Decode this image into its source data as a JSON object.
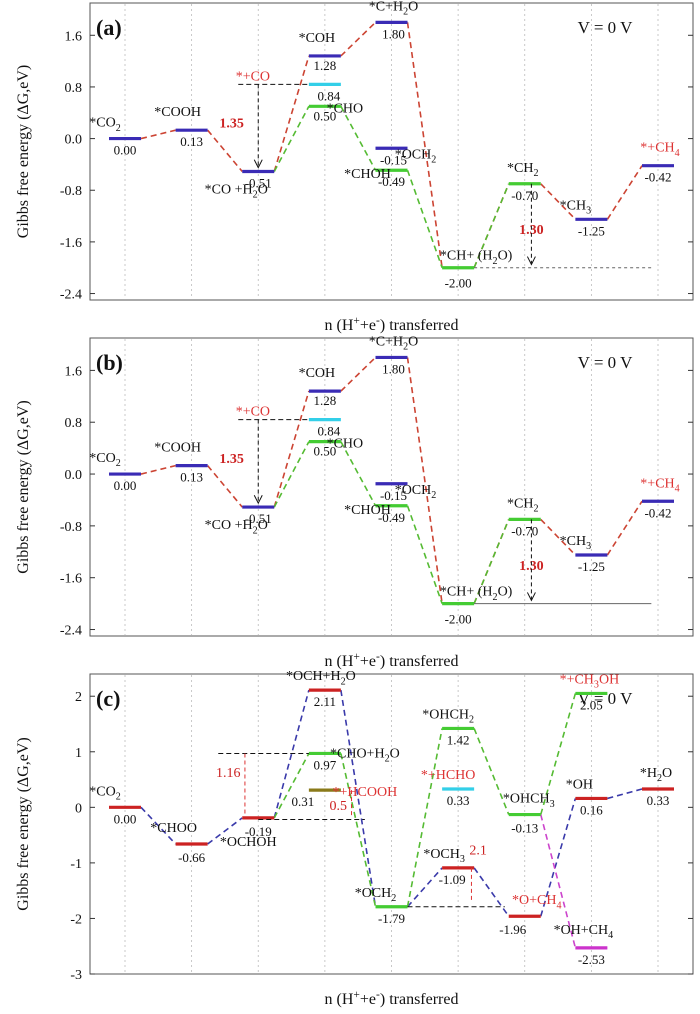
{
  "chart_data": [
    {
      "type": "line",
      "panel_label": "(a)",
      "voltage": "V = 0 V",
      "ylabel": "Gibbs free energy (ΔG,eV)",
      "xlabel": "n (H⁺+e⁻) transferred",
      "ylim": [
        -2.5,
        2.1
      ],
      "yticks": [
        "1.6",
        "0.8",
        "0.0",
        "-0.8",
        "-1.6",
        "-2.4"
      ],
      "yticks_values": [
        1.6,
        0.8,
        0.0,
        -0.8,
        -1.6,
        -2.4
      ],
      "xlim": [
        -0.3,
        8.0
      ],
      "grid_x": [
        0,
        1,
        2,
        3,
        4,
        5,
        6,
        7,
        8
      ],
      "states": [
        {
          "x": 0,
          "y": 0.0,
          "color": "#3a2bb5",
          "label": "*CO₂",
          "value": "0.00"
        },
        {
          "x": 1,
          "y": 0.13,
          "color": "#3a2bb5",
          "label": "*COOH",
          "value": "0.13"
        },
        {
          "x": 2,
          "y": -0.51,
          "color": "#3a2bb5",
          "label": "*CO +H₂O",
          "value": "-0.51"
        },
        {
          "x": 3,
          "y": 1.28,
          "color": "#3a2bb5",
          "label": "*COH",
          "value": "1.28"
        },
        {
          "x": 3,
          "y": 0.84,
          "color": "#33cfe8",
          "label": "*+CO",
          "value": "0.84"
        },
        {
          "x": 3,
          "y": 0.5,
          "color": "#44cc33",
          "label": "*CHO",
          "value": "0.50"
        },
        {
          "x": 4,
          "y": 1.8,
          "color": "#3a2bb5",
          "label": "*C+H₂O",
          "value": "1.80"
        },
        {
          "x": 4,
          "y": -0.15,
          "color": "#3a2bb5",
          "label": "*OCH₂",
          "value": "-0.15"
        },
        {
          "x": 4,
          "y": -0.49,
          "color": "#44cc33",
          "label": "*CHOH",
          "value": "-0.49"
        },
        {
          "x": 5,
          "y": -2.0,
          "color": "#44cc33",
          "label": "*CH+ (H₂O)",
          "value": "-2.00"
        },
        {
          "x": 6,
          "y": -0.7,
          "color": "#44cc33",
          "label": "*CH₂",
          "value": "-0.70"
        },
        {
          "x": 7,
          "y": -1.25,
          "color": "#3a2bb5",
          "label": "*CH₃",
          "value": "-1.25"
        },
        {
          "x": 8,
          "y": -0.42,
          "color": "#3a2bb5",
          "label": "*+CH₄",
          "value": "-0.42"
        }
      ],
      "series": [
        {
          "name": "red pathway",
          "color": "#cc4433",
          "points": [
            [
              0,
              0.0
            ],
            [
              1,
              0.13
            ],
            [
              2,
              -0.51
            ],
            [
              3,
              1.28
            ],
            [
              4,
              1.8
            ],
            [
              5,
              -2.0
            ],
            [
              6,
              -0.7
            ],
            [
              7,
              -1.25
            ],
            [
              8,
              -0.42
            ]
          ]
        },
        {
          "name": "green pathway",
          "color": "#55bb33",
          "points": [
            [
              2,
              -0.51
            ],
            [
              3,
              0.5
            ],
            [
              4,
              -0.49
            ],
            [
              5,
              -2.0
            ],
            [
              6,
              -0.7
            ]
          ]
        }
      ],
      "annotations": [
        {
          "text": "1.35",
          "color": "#cc2222",
          "x": 1.6,
          "y": 0.17
        },
        {
          "text": "1.30",
          "color": "#cc2222",
          "x": 6.1,
          "y": -1.48
        }
      ]
    },
    {
      "type": "line",
      "panel_label": "(b)",
      "voltage": "V = 0 V",
      "ylabel": "Gibbs free energy (ΔG,eV)",
      "xlabel": "n (H⁺+e⁻) transferred",
      "ylim": [
        -2.5,
        2.1
      ],
      "yticks": [
        "1.6",
        "0.8",
        "0.0",
        "-0.8",
        "-1.6",
        "-2.4"
      ],
      "yticks_values": [
        1.6,
        0.8,
        0.0,
        -0.8,
        -1.6,
        -2.4
      ],
      "xlim": [
        -0.3,
        8.0
      ],
      "grid_x": [
        0,
        1,
        2,
        3,
        4,
        5,
        6,
        7,
        8
      ],
      "states": [
        {
          "x": 0,
          "y": 0.0,
          "color": "#3a2bb5",
          "label": "*CO₂",
          "value": "0.00"
        },
        {
          "x": 1,
          "y": 0.13,
          "color": "#3a2bb5",
          "label": "*COOH",
          "value": "0.13"
        },
        {
          "x": 2,
          "y": -0.51,
          "color": "#3a2bb5",
          "label": "*CO +H₂O",
          "value": "-0.51"
        },
        {
          "x": 3,
          "y": 1.28,
          "color": "#3a2bb5",
          "label": "*COH",
          "value": "1.28"
        },
        {
          "x": 3,
          "y": 0.84,
          "color": "#33cfe8",
          "label": "*+CO",
          "value": "0.84"
        },
        {
          "x": 3,
          "y": 0.5,
          "color": "#44cc33",
          "label": "*CHO",
          "value": "0.50"
        },
        {
          "x": 4,
          "y": 1.8,
          "color": "#3a2bb5",
          "label": "*C+H₂O",
          "value": "1.80"
        },
        {
          "x": 4,
          "y": -0.15,
          "color": "#3a2bb5",
          "label": "*OCH₂",
          "value": "-0.15"
        },
        {
          "x": 4,
          "y": -0.49,
          "color": "#44cc33",
          "label": "*CHOH",
          "value": "-0.49"
        },
        {
          "x": 5,
          "y": -2.0,
          "color": "#44cc33",
          "label": "*CH+ (H₂O)",
          "value": "-2.00"
        },
        {
          "x": 6,
          "y": -0.7,
          "color": "#44cc33",
          "label": "*CH₂",
          "value": "-0.70"
        },
        {
          "x": 7,
          "y": -1.25,
          "color": "#3a2bb5",
          "label": "*CH₃",
          "value": "-1.25"
        },
        {
          "x": 8,
          "y": -0.42,
          "color": "#3a2bb5",
          "label": "*+CH₄",
          "value": "-0.42"
        }
      ],
      "series": [
        {
          "name": "red pathway",
          "color": "#cc4433",
          "points": [
            [
              0,
              0.0
            ],
            [
              1,
              0.13
            ],
            [
              2,
              -0.51
            ],
            [
              3,
              1.28
            ],
            [
              4,
              1.8
            ],
            [
              5,
              -2.0
            ],
            [
              6,
              -0.7
            ],
            [
              7,
              -1.25
            ],
            [
              8,
              -0.42
            ]
          ]
        },
        {
          "name": "green pathway",
          "color": "#55bb33",
          "points": [
            [
              2,
              -0.51
            ],
            [
              3,
              0.5
            ],
            [
              4,
              -0.49
            ],
            [
              5,
              -2.0
            ],
            [
              6,
              -0.7
            ]
          ]
        }
      ],
      "annotations": [
        {
          "text": "1.35",
          "color": "#cc2222",
          "x": 1.6,
          "y": 0.17
        },
        {
          "text": "1.30",
          "color": "#cc2222",
          "x": 6.1,
          "y": -1.48
        }
      ]
    },
    {
      "type": "line",
      "panel_label": "(c)",
      "voltage": "V = 0 V",
      "ylabel": "Gibbs free energy (ΔG,eV)",
      "xlabel": "n (H⁺+e⁻) transferred",
      "ylim": [
        -3.0,
        2.4
      ],
      "yticks": [
        "2",
        "1",
        "0",
        "-1",
        "-2",
        "-3"
      ],
      "yticks_values": [
        2,
        1,
        0,
        -1,
        -2,
        -3
      ],
      "xlim": [
        -0.3,
        8.0
      ],
      "grid_x": [
        0,
        1,
        2,
        3,
        4,
        5,
        6,
        7,
        8
      ],
      "states": [
        {
          "x": 0,
          "y": 0.0,
          "color": "#cc2222",
          "label": "*CO₂",
          "value": "0.00"
        },
        {
          "x": 1,
          "y": -0.66,
          "color": "#cc2222",
          "label": "*CHOO",
          "value": "-0.66"
        },
        {
          "x": 2,
          "y": -0.19,
          "color": "#cc2222",
          "label": "*OCHOH",
          "value": "-0.19"
        },
        {
          "x": 3,
          "y": 2.11,
          "color": "#cc2222",
          "label": "*OCH+H₂O",
          "value": "2.11"
        },
        {
          "x": 3,
          "y": 0.97,
          "color": "#44cc33",
          "label": "*CHO+H₂O",
          "value": "0.97"
        },
        {
          "x": 3,
          "y": 0.31,
          "color": "#8a7a1a",
          "label": "*+HCOOH",
          "value": "0.31"
        },
        {
          "x": 4,
          "y": -1.79,
          "color": "#44cc33",
          "label": "*OCH₂",
          "value": "-1.79"
        },
        {
          "x": 5,
          "y": 1.42,
          "color": "#44cc33",
          "label": "*OHCH₂",
          "value": "1.42"
        },
        {
          "x": 5,
          "y": 0.33,
          "color": "#33cfe8",
          "label": "*+HCHO",
          "value": "0.33"
        },
        {
          "x": 5,
          "y": -1.09,
          "color": "#cc2222",
          "label": "*OCH₃",
          "value": "-1.09"
        },
        {
          "x": 6,
          "y": -0.13,
          "color": "#44cc33",
          "label": "*OHCH₃",
          "value": "-0.13"
        },
        {
          "x": 6,
          "y": -1.96,
          "color": "#cc2222",
          "label": "*O+CH₄",
          "value": "-1.96"
        },
        {
          "x": 7,
          "y": 2.05,
          "color": "#44cc33",
          "label": "*+CH₃OH",
          "value": "2.05"
        },
        {
          "x": 7,
          "y": 0.16,
          "color": "#cc2222",
          "label": "*OH",
          "value": "0.16"
        },
        {
          "x": 7,
          "y": -2.53,
          "color": "#cc33cc",
          "label": "*OH+CH₄",
          "value": "-2.53"
        },
        {
          "x": 8,
          "y": 0.33,
          "color": "#cc2222",
          "label": "*H₂O",
          "value": "0.33"
        }
      ],
      "series": [
        {
          "name": "blue pathway",
          "color": "#3a3aaa",
          "points": [
            [
              0,
              0.0
            ],
            [
              1,
              -0.66
            ],
            [
              2,
              -0.19
            ],
            [
              3,
              2.11
            ],
            [
              4,
              -1.79
            ],
            [
              5,
              -1.09
            ],
            [
              6,
              -1.96
            ],
            [
              7,
              0.16
            ],
            [
              8,
              0.33
            ]
          ]
        },
        {
          "name": "green pathway",
          "color": "#55bb33",
          "points": [
            [
              2,
              -0.19
            ],
            [
              3,
              0.97
            ],
            [
              4,
              -1.79
            ],
            [
              5,
              1.42
            ],
            [
              6,
              -0.13
            ],
            [
              7,
              2.05
            ]
          ]
        },
        {
          "name": "magenta pathway",
          "color": "#cc44cc",
          "points": [
            [
              6,
              -0.13
            ],
            [
              7,
              -2.53
            ]
          ]
        }
      ],
      "annotations": [
        {
          "text": "1.16",
          "color": "#cc2222",
          "x": 1.55,
          "y": 0.55
        },
        {
          "text": "0.5",
          "color": "#cc2222",
          "x": 3.2,
          "y": -0.05
        },
        {
          "text": "2.1",
          "color": "#cc2222",
          "x": 5.3,
          "y": -0.85
        }
      ]
    }
  ]
}
